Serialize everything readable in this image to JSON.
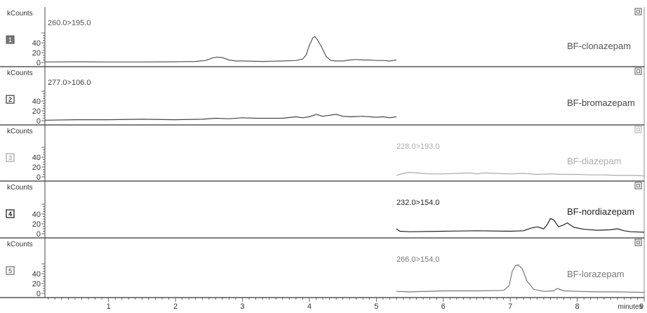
{
  "chart_data": {
    "type": "line",
    "y_unit_label": "kCounts",
    "x_unit_label": "minutes",
    "x_ticks": [
      "1",
      "2",
      "3",
      "4",
      "5",
      "6",
      "7",
      "8",
      "9"
    ],
    "xlim": [
      0.05,
      9.0
    ],
    "panels": [
      {
        "index": "1",
        "transition": "260.0>195.0",
        "name": "BF-clonazepam",
        "color": "#555555",
        "box_style": "filled",
        "y_ticks": [
          "0",
          "20",
          "40"
        ],
        "ylim": [
          0,
          62
        ],
        "x": [
          0.05,
          0.5,
          1.0,
          1.5,
          2.0,
          2.3,
          2.45,
          2.55,
          2.62,
          2.7,
          2.8,
          2.9,
          3.0,
          3.3,
          3.6,
          3.8,
          3.9,
          3.95,
          4.0,
          4.05,
          4.08,
          4.12,
          4.18,
          4.25,
          4.32,
          4.4,
          4.5,
          4.6,
          4.7,
          4.8,
          4.9,
          5.0,
          5.1,
          5.2,
          5.3
        ],
        "y": [
          1,
          1.5,
          1,
          1,
          1.5,
          2,
          4,
          9,
          11,
          10,
          5,
          3,
          3,
          2,
          3,
          4,
          7,
          15,
          35,
          50,
          53,
          46,
          32,
          12,
          4,
          3,
          3,
          5,
          6,
          5,
          5,
          4,
          4,
          3,
          5
        ]
      },
      {
        "index": "2",
        "transition": "277.0>106.0",
        "name": "BF-bromazepam",
        "color": "#444444",
        "box_style": "outline",
        "y_ticks": [
          "0",
          "20",
          "40"
        ],
        "ylim": [
          0,
          62
        ],
        "x": [
          0.05,
          0.5,
          1.0,
          1.5,
          2.0,
          2.4,
          2.6,
          2.8,
          3.0,
          3.2,
          3.4,
          3.6,
          3.8,
          3.9,
          4.0,
          4.1,
          4.2,
          4.3,
          4.4,
          4.5,
          4.6,
          4.8,
          5.0,
          5.1,
          5.2,
          5.3
        ],
        "y": [
          1,
          2,
          2,
          3,
          2,
          3,
          5,
          4,
          6,
          5,
          5,
          5,
          8,
          6,
          8,
          13,
          9,
          11,
          13,
          9,
          8,
          9,
          7,
          8,
          6,
          8
        ]
      },
      {
        "index": "3",
        "transition": "228.0>193.0",
        "name": "BF-diazepam",
        "color": "#aaaaaa",
        "box_style": "outline",
        "y_ticks": [
          "0",
          "20",
          "40"
        ],
        "ylim": [
          0,
          62
        ],
        "x": [
          5.3,
          5.4,
          5.5,
          5.6,
          5.8,
          6.0,
          6.2,
          6.4,
          6.5,
          6.6,
          6.8,
          7.0,
          7.2,
          7.4,
          7.6,
          7.8,
          8.0,
          8.2,
          8.4,
          8.6,
          8.8,
          9.0
        ],
        "y": [
          3,
          7,
          9,
          8,
          6,
          6,
          7,
          8,
          6,
          8,
          7,
          6,
          7,
          5,
          6,
          5,
          5,
          4,
          4,
          3,
          3,
          2
        ]
      },
      {
        "index": "4",
        "transition": "232.0>154.0",
        "name": "BF-nordiazepam",
        "color": "#222222",
        "box_style": "outline",
        "y_ticks": [
          "0",
          "20",
          "40"
        ],
        "ylim": [
          0,
          62
        ],
        "x": [
          5.3,
          5.35,
          5.5,
          6.0,
          6.5,
          7.0,
          7.2,
          7.3,
          7.4,
          7.5,
          7.55,
          7.6,
          7.65,
          7.72,
          7.8,
          7.85,
          7.95,
          8.1,
          8.3,
          8.5,
          8.6,
          8.7,
          8.8,
          9.0
        ],
        "y": [
          10,
          5,
          4,
          5,
          6,
          5,
          6,
          11,
          14,
          10,
          18,
          31,
          28,
          14,
          18,
          22,
          13,
          9,
          7,
          8,
          10,
          6,
          4,
          3
        ]
      },
      {
        "index": "5",
        "transition": "266.0>154.0",
        "name": "BF-lorazepam",
        "color": "#777777",
        "box_style": "outline",
        "y_ticks": [
          "0",
          "20",
          "40"
        ],
        "ylim": [
          0,
          62
        ],
        "x": [
          5.3,
          5.5,
          6.0,
          6.5,
          6.9,
          6.98,
          7.03,
          7.08,
          7.12,
          7.18,
          7.25,
          7.35,
          7.5,
          7.65,
          7.7,
          7.8,
          8.0,
          8.3,
          8.6,
          9.0
        ],
        "y": [
          4,
          3,
          5,
          5,
          6,
          15,
          45,
          57,
          58,
          50,
          25,
          8,
          4,
          5,
          10,
          5,
          4,
          3,
          3,
          2
        ]
      }
    ]
  }
}
